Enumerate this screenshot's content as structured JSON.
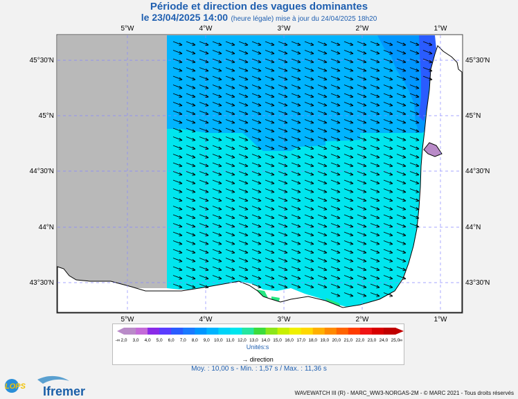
{
  "header": {
    "title": "Période et direction des vagues dominantes",
    "date_bold": "le 23/04/2025 14:00",
    "date_note": "(heure légale) mise à jour du 24/04/2025 18h20"
  },
  "map": {
    "lon_labels": [
      "5°W",
      "4°W",
      "3°W",
      "2°W",
      "1°W"
    ],
    "lat_labels": [
      "45°30'N",
      "45°N",
      "44°30'N",
      "44°N",
      "43°30'N"
    ],
    "colors": {
      "no_data": "#b9b9b9",
      "land": "#ffffff",
      "period_10": "#00e6ee",
      "period_9": "#00b4ff",
      "period_8": "#0096ff",
      "period_7": "#2a5cff",
      "period_5": "#6a2cf0",
      "period_12": "#26e680",
      "period_2": "#b98bc8"
    }
  },
  "colorbar": {
    "ticks": [
      "2,0",
      "3,0",
      "4,0",
      "5,0",
      "6,0",
      "7,0",
      "8,0",
      "9,0",
      "10,0",
      "11,0",
      "12,0",
      "13,0",
      "14,0",
      "15,0",
      "16,0",
      "17,0",
      "18,0",
      "19,0",
      "20,0",
      "21,0",
      "22,0",
      "23,0",
      "24,0",
      "25,0"
    ],
    "low_end": "-∞",
    "high_end": "∞",
    "colors": [
      "#b98bc8",
      "#c46ad8",
      "#8a2ae8",
      "#5a3cff",
      "#2a5cff",
      "#1a7aff",
      "#0096ff",
      "#00b4ff",
      "#00d4f8",
      "#00e6ee",
      "#26e6a0",
      "#3cdc3c",
      "#8ce61a",
      "#c8f000",
      "#f0f000",
      "#ffd800",
      "#ffb000",
      "#ff8a00",
      "#ff6400",
      "#ff3c00",
      "#f01414",
      "#d80000",
      "#c00000"
    ],
    "unit_label": "Unités:s"
  },
  "legend": {
    "direction_label": "direction"
  },
  "stats": {
    "text": "Moy. : 10,00 s   -   Min. : 1,57 s / Max. : 11,36 s"
  },
  "footer": {
    "credits": "WAVEWATCH III (R) - MARC_WW3-NORGAS-2M - © MARC 2021 - Tous droits réservés"
  }
}
